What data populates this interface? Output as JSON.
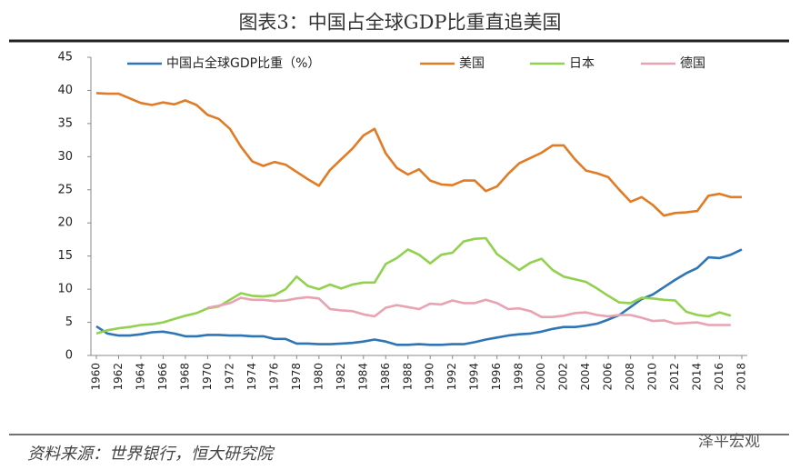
{
  "chart_data": {
    "type": "line",
    "title": "图表3：中国占全球GDP比重直追美国",
    "source": "资料来源：世界银行，恒大研究院",
    "watermark": "泽平宏观",
    "x": [
      1960,
      1961,
      1962,
      1963,
      1964,
      1965,
      1966,
      1967,
      1968,
      1969,
      1970,
      1971,
      1972,
      1973,
      1974,
      1975,
      1976,
      1977,
      1978,
      1979,
      1980,
      1981,
      1982,
      1983,
      1984,
      1985,
      1986,
      1987,
      1988,
      1989,
      1990,
      1991,
      1992,
      1993,
      1994,
      1995,
      1996,
      1997,
      1998,
      1999,
      2000,
      2001,
      2002,
      2003,
      2004,
      2005,
      2006,
      2007,
      2008,
      2009,
      2010,
      2011,
      2012,
      2013,
      2014,
      2015,
      2016,
      2017,
      2018
    ],
    "xlim": [
      1960,
      2018
    ],
    "xticks": [
      1960,
      1962,
      1964,
      1966,
      1968,
      1970,
      1972,
      1974,
      1976,
      1978,
      1980,
      1982,
      1984,
      1986,
      1988,
      1990,
      1992,
      1994,
      1996,
      1998,
      2000,
      2002,
      2004,
      2006,
      2008,
      2010,
      2012,
      2014,
      2016,
      2018
    ],
    "ylim": [
      0,
      45
    ],
    "yticks": [
      0,
      5,
      10,
      15,
      20,
      25,
      30,
      35,
      40,
      45
    ],
    "grid": false,
    "legend": "top",
    "series": [
      {
        "name": "中国占全球GDP比重（%）",
        "color": "#2e75b6",
        "values": [
          4.4,
          3.3,
          3.0,
          3.0,
          3.2,
          3.5,
          3.6,
          3.3,
          2.9,
          2.9,
          3.1,
          3.1,
          3.0,
          3.0,
          2.9,
          2.9,
          2.5,
          2.5,
          1.8,
          1.8,
          1.7,
          1.7,
          1.8,
          1.9,
          2.1,
          2.4,
          2.1,
          1.6,
          1.6,
          1.7,
          1.6,
          1.6,
          1.7,
          1.7,
          2.0,
          2.4,
          2.7,
          3.0,
          3.2,
          3.3,
          3.6,
          4.0,
          4.3,
          4.3,
          4.5,
          4.8,
          5.4,
          6.1,
          7.3,
          8.5,
          9.2,
          10.3,
          11.4,
          12.4,
          13.2,
          14.8,
          14.7,
          15.2,
          16.0
        ]
      },
      {
        "name": "美国",
        "color": "#e07b26",
        "values": [
          39.6,
          39.5,
          39.5,
          38.8,
          38.1,
          37.8,
          38.2,
          37.9,
          38.5,
          37.8,
          36.3,
          35.7,
          34.2,
          31.5,
          29.3,
          28.6,
          29.2,
          28.8,
          27.7,
          26.6,
          25.6,
          28.0,
          29.6,
          31.2,
          33.2,
          34.2,
          30.5,
          28.3,
          27.3,
          28.1,
          26.4,
          25.8,
          25.7,
          26.4,
          26.4,
          24.8,
          25.5,
          27.4,
          29.0,
          29.8,
          30.6,
          31.7,
          31.7,
          29.6,
          27.9,
          27.5,
          26.9,
          25.0,
          23.2,
          23.9,
          22.7,
          21.1,
          21.5,
          21.6,
          21.8,
          24.1,
          24.4,
          23.9,
          23.9
        ]
      },
      {
        "name": "日本",
        "color": "#92d050",
        "values": [
          3.3,
          3.8,
          4.1,
          4.3,
          4.6,
          4.7,
          5.0,
          5.5,
          6.0,
          6.4,
          7.1,
          7.4,
          8.4,
          9.4,
          9.0,
          8.9,
          9.1,
          10.0,
          11.9,
          10.5,
          10.0,
          10.7,
          10.1,
          10.7,
          11.0,
          11.0,
          13.8,
          14.7,
          16.0,
          15.2,
          13.9,
          15.2,
          15.5,
          17.2,
          17.6,
          17.7,
          15.3,
          14.1,
          12.9,
          14.0,
          14.6,
          12.9,
          11.9,
          11.5,
          11.1,
          10.1,
          9.0,
          8.0,
          7.9,
          8.7,
          8.6,
          8.4,
          8.3,
          6.6,
          6.1,
          5.9,
          6.5,
          6.0,
          null
        ]
      },
      {
        "name": "德国",
        "color": "#e8a3b3",
        "values": [
          null,
          null,
          null,
          null,
          null,
          null,
          null,
          null,
          null,
          null,
          7.2,
          7.5,
          7.9,
          8.7,
          8.4,
          8.4,
          8.2,
          8.3,
          8.6,
          8.8,
          8.6,
          7.0,
          6.8,
          6.7,
          6.2,
          5.9,
          7.2,
          7.6,
          7.3,
          7.0,
          7.8,
          7.7,
          8.3,
          7.9,
          7.9,
          8.4,
          7.9,
          7.0,
          7.1,
          6.7,
          5.8,
          5.8,
          6.0,
          6.4,
          6.5,
          6.1,
          5.9,
          6.1,
          6.1,
          5.7,
          5.2,
          5.3,
          4.8,
          4.9,
          5.0,
          4.6,
          4.6,
          4.6,
          null
        ]
      }
    ]
  }
}
